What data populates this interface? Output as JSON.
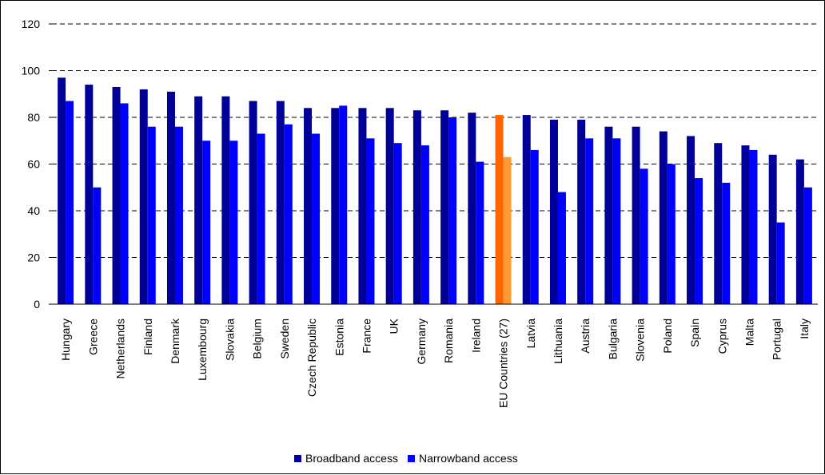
{
  "chart_data": {
    "type": "bar",
    "title": "",
    "xlabel": "",
    "ylabel": "",
    "ylim": [
      0,
      120
    ],
    "yticks": [
      0,
      20,
      40,
      60,
      80,
      100,
      120
    ],
    "grid": true,
    "legend_position": "bottom",
    "categories": [
      "Hungary",
      "Greece",
      "Netherlands",
      "Finland",
      "Denmark",
      "Luxembourg",
      "Slovakia",
      "Belgium",
      "Sweden",
      "Czech Republic",
      "Estonia",
      "France",
      "UK",
      "Germany",
      "Romania",
      "Ireland",
      "EU Countries (27)",
      "Latvia",
      "Lithuania",
      "Austria",
      "Bulgaria",
      "Slovenia",
      "Poland",
      "Spain",
      "Cyprus",
      "Malta",
      "Portugal",
      "Italy"
    ],
    "series": [
      {
        "name": "Broadband access",
        "color": "#000099",
        "values": [
          97,
          94,
          93,
          92,
          91,
          89,
          89,
          87,
          87,
          84,
          84,
          84,
          84,
          83,
          83,
          82,
          81,
          81,
          79,
          79,
          76,
          76,
          74,
          72,
          69,
          68,
          64,
          62
        ]
      },
      {
        "name": "Narrowband access",
        "color": "#0000ff",
        "values": [
          87,
          50,
          86,
          76,
          76,
          70,
          70,
          73,
          77,
          73,
          85,
          71,
          69,
          68,
          80,
          61,
          63,
          66,
          48,
          71,
          71,
          58,
          60,
          54,
          52,
          66,
          35,
          50
        ]
      }
    ],
    "highlight": {
      "category": "EU Countries (27)",
      "colors": [
        "#ff6600",
        "#ff9933"
      ]
    }
  }
}
